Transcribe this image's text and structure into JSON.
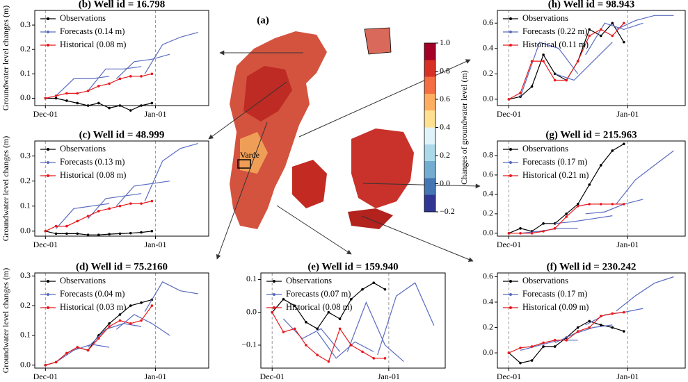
{
  "chart_data": [
    {
      "type": "line",
      "title": "(b)  Well id = 16.798",
      "y_label": "Groundwater level changes (m)",
      "xlim": [
        -3,
        46
      ],
      "xticks": [
        {
          "value": 0,
          "label": "Dec-01"
        },
        {
          "value": 31,
          "label": "Jan-01"
        }
      ],
      "ylim": [
        -0.03,
        0.36
      ],
      "yticks": [
        {
          "value": 0,
          "label": "0.0"
        },
        0.1,
        0.2,
        0.3
      ],
      "series": [
        {
          "name": "Observations",
          "color": "#000000",
          "marker": true,
          "x": [
            0,
            3,
            6,
            9,
            12,
            15,
            18,
            21,
            24,
            27,
            30
          ],
          "values": [
            0,
            0,
            -0.01,
            -0.02,
            -0.03,
            -0.02,
            -0.04,
            -0.03,
            -0.05,
            -0.03,
            -0.02
          ]
        },
        {
          "name": "Forecasts (0.14 m)",
          "color": "#5a6bbf",
          "marker": false,
          "x": [
            3,
            8,
            13,
            18,
            null,
            12,
            17,
            22,
            27,
            null,
            20,
            25,
            30,
            35,
            null,
            28,
            33,
            38,
            43
          ],
          "values": [
            0.01,
            0.08,
            0.08,
            0.09,
            null,
            0.03,
            0.12,
            0.12,
            0.13,
            null,
            0.08,
            0.15,
            0.16,
            0.18,
            null,
            0.1,
            0.22,
            0.25,
            0.27
          ]
        },
        {
          "name": "Historical (0.08 m)",
          "color": "#e8191d",
          "marker": true,
          "x": [
            0,
            3,
            6,
            9,
            12,
            15,
            18,
            21,
            24,
            27,
            30
          ],
          "values": [
            0,
            0.01,
            0.02,
            0.02,
            0.03,
            0.05,
            0.06,
            0.08,
            0.09,
            0.09,
            0.1
          ]
        }
      ]
    },
    {
      "type": "line",
      "title": "(c)  Well id = 48.999",
      "y_label": "Groundwater level changes (m)",
      "xlim": [
        -3,
        46
      ],
      "xticks": [
        {
          "value": 0,
          "label": "Dec-01"
        },
        {
          "value": 31,
          "label": "Jan-01"
        }
      ],
      "ylim": [
        -0.02,
        0.36
      ],
      "yticks": [
        {
          "value": 0,
          "label": "0.0"
        },
        0.1,
        0.2,
        0.3
      ],
      "series": [
        {
          "name": "Observations",
          "color": "#000000",
          "marker": true,
          "x": [
            0,
            3,
            6,
            9,
            12,
            15,
            18,
            21,
            24,
            27,
            30
          ],
          "values": [
            0,
            -0.01,
            -0.01,
            -0.01,
            -0.015,
            -0.015,
            -0.012,
            -0.01,
            -0.008,
            -0.005,
            0
          ]
        },
        {
          "name": "Forecasts (0.13 m)",
          "color": "#5a6bbf",
          "marker": false,
          "x": [
            3,
            8,
            13,
            18,
            null,
            12,
            17,
            22,
            27,
            null,
            20,
            25,
            30,
            35,
            null,
            28,
            33,
            38,
            43
          ],
          "values": [
            0.01,
            0.09,
            0.1,
            0.11,
            null,
            0.05,
            0.13,
            0.14,
            0.15,
            null,
            0.1,
            0.18,
            0.19,
            0.2,
            null,
            0.12,
            0.28,
            0.33,
            0.35
          ]
        },
        {
          "name": "Historical (0.08 m)",
          "color": "#e8191d",
          "marker": true,
          "x": [
            0,
            3,
            6,
            9,
            12,
            15,
            18,
            21,
            24,
            27,
            30
          ],
          "values": [
            0,
            0.02,
            0.02,
            0.04,
            0.06,
            0.08,
            0.09,
            0.1,
            0.11,
            0.11,
            0.12
          ]
        }
      ]
    },
    {
      "type": "line",
      "title": "(d)  Well id = 75.2160",
      "y_label": "Groundwater level changes (m)",
      "xlim": [
        -3,
        46
      ],
      "xticks": [
        {
          "value": 0,
          "label": "Dec-01"
        },
        {
          "value": 31,
          "label": "Jan-01"
        }
      ],
      "ylim": [
        -0.01,
        0.31
      ],
      "yticks": [
        {
          "value": 0,
          "label": "0.0"
        },
        0.1,
        0.2,
        0.3
      ],
      "series": [
        {
          "name": "Observations",
          "color": "#000000",
          "marker": true,
          "x": [
            0,
            3,
            6,
            9,
            12,
            15,
            18,
            21,
            24,
            27,
            30
          ],
          "values": [
            0,
            0.01,
            0.04,
            0.06,
            0.05,
            0.1,
            0.14,
            0.17,
            0.2,
            0.21,
            0.22
          ]
        },
        {
          "name": "Forecasts (0.04 m)",
          "color": "#5a6bbf",
          "marker": false,
          "x": [
            3,
            8,
            13,
            18,
            null,
            12,
            17,
            22,
            27,
            null,
            20,
            25,
            30,
            35,
            null,
            28,
            33,
            38,
            43
          ],
          "values": [
            0.01,
            0.05,
            0.07,
            0.06,
            null,
            0.06,
            0.12,
            0.14,
            0.13,
            null,
            0.12,
            0.17,
            0.14,
            0.1,
            null,
            0.18,
            0.28,
            0.25,
            0.24
          ]
        },
        {
          "name": "Historical (0.03 m)",
          "color": "#e8191d",
          "marker": true,
          "x": [
            0,
            3,
            6,
            9,
            12,
            15,
            18,
            21,
            24,
            27,
            30
          ],
          "values": [
            0,
            0.01,
            0.04,
            0.06,
            0.05,
            0.09,
            0.13,
            0.15,
            0.14,
            0.15,
            0.2
          ]
        }
      ]
    },
    {
      "type": "line",
      "title": "(e)  Well id = 159.940",
      "xlim": [
        -3,
        46
      ],
      "xticks": [
        {
          "value": 0,
          "label": "Dec-01"
        },
        {
          "value": 31,
          "label": "Jan-01"
        }
      ],
      "ylim": [
        -0.17,
        0.12
      ],
      "yticks": [
        {
          "value": -0.1,
          "label": "−0.1"
        },
        {
          "value": 0,
          "label": "0.0"
        },
        0.1
      ],
      "series": [
        {
          "name": "Observations",
          "color": "#000000",
          "marker": true,
          "x": [
            0,
            3,
            6,
            9,
            12,
            15,
            18,
            21,
            24,
            27,
            30
          ],
          "values": [
            0,
            0.04,
            0.02,
            -0.03,
            -0.05,
            0,
            -0.02,
            0.04,
            0.07,
            0.09,
            0.07
          ]
        },
        {
          "name": "Forecasts (0.07 m)",
          "color": "#5a6bbf",
          "marker": false,
          "x": [
            3,
            8,
            13,
            18,
            null,
            12,
            17,
            22,
            27,
            null,
            20,
            25,
            30,
            35,
            null,
            28,
            33,
            38,
            43
          ],
          "values": [
            -0.02,
            -0.08,
            -0.05,
            -0.12,
            null,
            -0.06,
            -0.14,
            -0.09,
            -0.12,
            null,
            -0.12,
            0.03,
            -0.1,
            -0.15,
            null,
            -0.13,
            0.05,
            0.09,
            -0.04
          ]
        },
        {
          "name": "Historical (0.08 m)",
          "color": "#e8191d",
          "marker": true,
          "x": [
            0,
            3,
            6,
            9,
            12,
            15,
            18,
            21,
            24,
            27,
            30
          ],
          "values": [
            0,
            -0.06,
            -0.05,
            -0.1,
            -0.13,
            -0.15,
            -0.05,
            -0.1,
            -0.12,
            -0.14,
            -0.14
          ]
        }
      ]
    },
    {
      "type": "line",
      "title": "(h)  Well id = 98.943",
      "xlim": [
        -3,
        46
      ],
      "xticks": [
        {
          "value": 0,
          "label": "Dec-01"
        },
        {
          "value": 31,
          "label": "Jan-01"
        }
      ],
      "ylim": [
        -0.05,
        0.7
      ],
      "yticks": [
        {
          "value": 0,
          "label": "0.0"
        },
        0.2,
        0.4,
        0.6
      ],
      "series": [
        {
          "name": "Observations",
          "color": "#000000",
          "marker": true,
          "x": [
            0,
            3,
            6,
            9,
            12,
            15,
            18,
            21,
            24,
            27,
            30
          ],
          "values": [
            0,
            0.02,
            0.1,
            0.35,
            0.2,
            0.15,
            0.3,
            0.55,
            0.5,
            0.6,
            0.45
          ]
        },
        {
          "name": "Forecasts (0.22 m)",
          "color": "#5a6bbf",
          "marker": false,
          "x": [
            3,
            8,
            13,
            18,
            null,
            12,
            17,
            22,
            27,
            null,
            20,
            25,
            30,
            35,
            null,
            28,
            33,
            38,
            43
          ],
          "values": [
            0.02,
            0.45,
            0.4,
            0.2,
            null,
            0.2,
            0.15,
            0.3,
            0.45,
            null,
            0.35,
            0.6,
            0.55,
            0.6,
            null,
            0.55,
            0.62,
            0.66,
            0.66
          ]
        },
        {
          "name": "Historical (0.11 m)",
          "color": "#e8191d",
          "marker": true,
          "x": [
            0,
            3,
            6,
            9,
            12,
            15,
            18,
            21,
            24,
            27,
            30
          ],
          "values": [
            0,
            0.05,
            0.3,
            0.3,
            0.15,
            0.15,
            0.3,
            0.5,
            0.55,
            0.5,
            0.6
          ]
        }
      ]
    },
    {
      "type": "line",
      "title": "(g)  Well id = 215.963",
      "xlim": [
        -3,
        46
      ],
      "xticks": [
        {
          "value": 0,
          "label": "Dec-01"
        },
        {
          "value": 31,
          "label": "Jan-01"
        }
      ],
      "ylim": [
        -0.03,
        0.95
      ],
      "yticks": [
        {
          "value": 0,
          "label": "0.0"
        },
        0.2,
        0.4,
        0.6,
        0.8
      ],
      "series": [
        {
          "name": "Observations",
          "color": "#000000",
          "marker": true,
          "x": [
            0,
            3,
            6,
            9,
            12,
            15,
            18,
            21,
            24,
            27,
            30
          ],
          "values": [
            0,
            0.05,
            0.02,
            0.1,
            0.1,
            0.2,
            0.3,
            0.5,
            0.7,
            0.85,
            0.92
          ]
        },
        {
          "name": "Forecasts (0.17 m)",
          "color": "#5a6bbf",
          "marker": false,
          "x": [
            3,
            8,
            13,
            18,
            null,
            12,
            17,
            22,
            27,
            null,
            20,
            25,
            30,
            35,
            null,
            28,
            33,
            38,
            43
          ],
          "values": [
            0,
            0.02,
            0.05,
            0.05,
            null,
            0.1,
            0.12,
            0.15,
            0.18,
            null,
            0.2,
            0.22,
            0.3,
            0.35,
            null,
            0.3,
            0.55,
            0.7,
            0.85
          ]
        },
        {
          "name": "Historical (0.21 m)",
          "color": "#e8191d",
          "marker": true,
          "x": [
            0,
            3,
            6,
            9,
            12,
            15,
            18,
            21,
            24,
            27,
            30
          ],
          "values": [
            0,
            0,
            0,
            0.02,
            0.05,
            0.17,
            0.28,
            0.3,
            0.3,
            0.3,
            0.3
          ]
        }
      ]
    },
    {
      "type": "line",
      "title": "(f)  Well id = 230.242",
      "xlim": [
        -3,
        46
      ],
      "xticks": [
        {
          "value": 0,
          "label": "Dec-01"
        },
        {
          "value": 31,
          "label": "Jan-01"
        }
      ],
      "ylim": [
        -0.12,
        0.63
      ],
      "yticks": [
        {
          "value": 0,
          "label": "0.0"
        },
        0.2,
        0.4,
        0.6
      ],
      "series": [
        {
          "name": "Observations",
          "color": "#000000",
          "marker": true,
          "x": [
            0,
            3,
            6,
            9,
            12,
            15,
            18,
            21,
            24,
            27,
            30
          ],
          "values": [
            0,
            -0.08,
            -0.06,
            0.05,
            0.05,
            0.12,
            0.2,
            0.25,
            0.22,
            0.2,
            0.17
          ]
        },
        {
          "name": "Forecasts (0.17 m)",
          "color": "#5a6bbf",
          "marker": false,
          "x": [
            3,
            8,
            13,
            18,
            null,
            12,
            17,
            22,
            27,
            null,
            20,
            25,
            30,
            35,
            null,
            28,
            33,
            38,
            43
          ],
          "values": [
            0.02,
            0.06,
            0.1,
            0.1,
            null,
            0.08,
            0.15,
            0.2,
            0.22,
            null,
            0.22,
            0.3,
            0.32,
            0.35,
            null,
            0.33,
            0.45,
            0.55,
            0.6
          ]
        },
        {
          "name": "Historical (0.09 m)",
          "color": "#e8191d",
          "marker": true,
          "x": [
            0,
            3,
            6,
            9,
            12,
            15,
            18,
            21,
            24,
            27,
            30
          ],
          "values": [
            0,
            0.04,
            0.05,
            0.08,
            0.1,
            0.1,
            0.17,
            0.2,
            0.29,
            0.31,
            0.32
          ]
        }
      ]
    },
    {
      "type": "map",
      "title": "(a)",
      "annotations": [
        "Varde"
      ],
      "colorbar": {
        "label": "Changes of groundwater level (m)",
        "lim": [
          -0.2,
          1.0
        ],
        "ticks": [
          {
            "value": 1,
            "label": "1.0"
          },
          0.8,
          0.6,
          0.4,
          0.2,
          {
            "value": 0,
            "label": "0.0"
          },
          {
            "value": -0.2,
            "label": "−0.2"
          }
        ],
        "colors": [
          "#313695",
          "#4575b4",
          "#74add1",
          "#abd9e9",
          "#e0f3f8",
          "#fee090",
          "#fdae61",
          "#f46d43",
          "#d73027",
          "#a50026"
        ]
      }
    }
  ]
}
